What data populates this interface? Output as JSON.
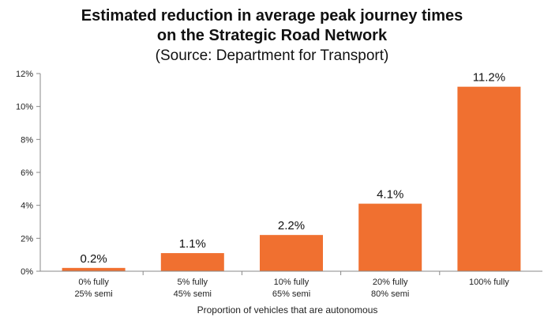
{
  "chart_data": {
    "type": "bar",
    "title": "Estimated reduction in average peak journey times on the Strategic Road Network",
    "title_lines": [
      "Estimated reduction in average peak journey times",
      "on the Strategic Road Network"
    ],
    "subtitle": "(Source: Department for Transport)",
    "xlabel": "Proportion of vehicles that are autonomous",
    "ylabel": "",
    "categories": [
      [
        "0% fully",
        "25% semi"
      ],
      [
        "5% fully",
        "45% semi"
      ],
      [
        "10% fully",
        "65% semi"
      ],
      [
        "20% fully",
        "80% semi"
      ],
      [
        "100% fully"
      ]
    ],
    "values": [
      0.2,
      1.1,
      2.2,
      4.1,
      11.2
    ],
    "data_labels": [
      "0.2%",
      "1.1%",
      "2.2%",
      "4.1%",
      "11.2%"
    ],
    "ylim": [
      0,
      12
    ],
    "yticks": [
      0,
      2,
      4,
      6,
      8,
      10,
      12
    ],
    "ytick_labels": [
      "0%",
      "2%",
      "4%",
      "6%",
      "8%",
      "10%",
      "12%"
    ],
    "bar_color": "#f07030",
    "grid": false,
    "legend": "none"
  }
}
